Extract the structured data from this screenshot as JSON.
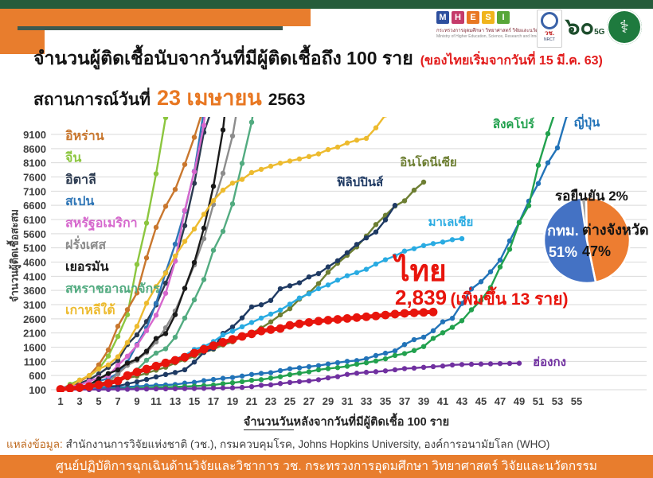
{
  "header": {
    "title": "จำนวนผู้ติดเชื้อนับจากวันที่มีผู้ติดเชื้อถึง 100 ราย",
    "title_note": "(ของไทยเริ่มจากวันที่ 15 มี.ค. 63)",
    "status_prefix": "สถานการณ์วันที่",
    "status_date": "23 เมษายน",
    "status_year": "2563",
    "logos": {
      "mhesi_letters": [
        "M",
        "H",
        "E",
        "S",
        "I"
      ],
      "mhesi_colors": [
        "#2d4f9e",
        "#c53a6a",
        "#e87722",
        "#f0b41c",
        "#58a638"
      ],
      "mhesi_thai": "กระทรวงการอุดมศึกษา วิทยาศาสตร์ วิจัยและนวัตกรรม",
      "mhesi_eng": "Ministry of Higher Education, Science, Research and Innovation",
      "nrct_thai": "วช.",
      "nrct_eng": "NRCT",
      "sixty_thai": "๖๐",
      "sixty_sub": "5G",
      "moph_symbol": "⚕"
    }
  },
  "chart_data": [
    {
      "type": "line",
      "title": "จำนวนผู้ติดเชื้อนับจากวันที่มีผู้ติดเชื้อถึง 100 ราย (ของไทยเริ่มจากวันที่ 15 มี.ค. 63)",
      "xlabel": "จำนวนวันหลังจากวันที่มีผู้ติดเชื้อ 100 ราย",
      "xlabel_parts": [
        "จำนวนวัน",
        "หลังจากวันที่มีผู้ติดเชื้อ 100 ราย"
      ],
      "ylabel": "จำนวนผู้ติดเชื้อสะสม",
      "x_ticks": [
        1,
        3,
        5,
        7,
        9,
        11,
        13,
        15,
        17,
        19,
        21,
        23,
        25,
        27,
        29,
        31,
        33,
        35,
        37,
        39,
        41,
        43,
        45,
        47,
        49,
        51,
        53,
        55
      ],
      "y_ticks": [
        100,
        600,
        1100,
        1600,
        2100,
        2600,
        3100,
        3600,
        4100,
        4600,
        5100,
        5600,
        6100,
        6600,
        7100,
        7600,
        8100,
        8600,
        9100
      ],
      "xlim": [
        1,
        56
      ],
      "ylim": [
        100,
        9600
      ],
      "grid": true,
      "legend_position": "labels-on-chart",
      "annotation": {
        "country": "ไทย",
        "value": "2,839",
        "note": "(เพิ่มขึ้น 13 ราย)"
      },
      "series": [
        {
          "id": "china",
          "name": "จีน",
          "color": "#8cc63f",
          "values": [
            100,
            291,
            440,
            571,
            830,
            1287,
            1975,
            2744,
            4515,
            5974,
            7711,
            9692
          ]
        },
        {
          "id": "iran",
          "name": "อิหร่าน",
          "color": "#c9772e",
          "values": [
            139,
            245,
            388,
            593,
            978,
            1501,
            2336,
            2922,
            3513,
            4747,
            5823,
            6566,
            7161,
            8042,
            9000,
            10075
          ]
        },
        {
          "id": "italy",
          "name": "อิตาลี",
          "color": "#2b3a50",
          "values": [
            155,
            229,
            322,
            453,
            655,
            888,
            1128,
            1694,
            2036,
            2502,
            3089,
            3858,
            4636,
            5883,
            7375,
            9172,
            10149
          ]
        },
        {
          "id": "spain",
          "name": "สเปน",
          "color": "#2e75b6",
          "values": [
            120,
            165,
            222,
            259,
            400,
            500,
            673,
            1073,
            1695,
            2277,
            3146,
            4231,
            5232,
            6391,
            7798,
            9942
          ]
        },
        {
          "id": "usa",
          "name": "สหรัฐอเมริกา",
          "color": "#d667cd",
          "values": [
            149,
            217,
            262,
            402,
            518,
            583,
            959,
            1281,
            1663,
            2179,
            2727,
            3499,
            4632,
            6421,
            7783,
            9415,
            13677
          ]
        },
        {
          "id": "france",
          "name": "ฝรั่งเศส",
          "color": "#8c8c8c",
          "values": [
            100,
            130,
            191,
            204,
            288,
            380,
            656,
            959,
            1136,
            1412,
            1784,
            2281,
            2876,
            3661,
            4499,
            5423,
            6633,
            7730,
            9043,
            10995
          ]
        },
        {
          "id": "germany",
          "name": "เยอรมัน",
          "color": "#1a1a1a",
          "values": [
            130,
            159,
            196,
            262,
            482,
            670,
            799,
            1040,
            1176,
            1457,
            1908,
            2078,
            2745,
            3675,
            4585,
            5795,
            7272,
            9257,
            12327
          ]
        },
        {
          "id": "uk",
          "name": "สหราชอาณาจักร",
          "color": "#52ab80",
          "values": [
            115,
            163,
            206,
            273,
            321,
            382,
            456,
            590,
            797,
            1140,
            1391,
            1543,
            1950,
            2626,
            3269,
            3983,
            5018,
            5683,
            6650,
            8077,
            9529,
            11658
          ]
        },
        {
          "id": "korea",
          "name": "เกาหลีใต้",
          "color": "#edbb2f",
          "values": [
            104,
            204,
            433,
            602,
            833,
            977,
            1261,
            1766,
            2337,
            3150,
            3736,
            4212,
            4812,
            5328,
            5766,
            6284,
            6767,
            7134,
            7382,
            7513,
            7755,
            7869,
            7979,
            8086,
            8162,
            8236,
            8320,
            8413,
            8565,
            8652,
            8799,
            8897,
            8961,
            9332,
            9786,
            10237,
            10683
          ]
        },
        {
          "id": "japan",
          "name": "ญี่ปุ่น",
          "color": "#2273b8",
          "values": [
            105,
            122,
            132,
            144,
            156,
            164,
            178,
            200,
            218,
            239,
            254,
            268,
            284,
            331,
            360,
            420,
            461,
            502,
            530,
            581,
            639,
            675,
            701,
            773,
            839,
            873,
            914,
            950,
            1007,
            1054,
            1101,
            1128,
            1193,
            1307,
            1387,
            1468,
            1693,
            1866,
            1953,
            2178,
            2495,
            2617,
            3139,
            3654,
            3906,
            4257,
            4667,
            5347,
            6005,
            6748,
            7370,
            8100,
            8626,
            9787
          ]
        },
        {
          "id": "singapore",
          "name": "สิงคโปร์",
          "color": "#22a14e",
          "values": [
            102,
            106,
            108,
            110,
            112,
            117,
            130,
            138,
            150,
            160,
            178,
            187,
            200,
            212,
            226,
            243,
            266,
            313,
            345,
            385,
            432,
            455,
            509,
            558,
            631,
            683,
            732,
            802,
            844,
            879,
            926,
            1000,
            1049,
            1114,
            1189,
            1309,
            1375,
            1481,
            1623,
            1910,
            2108,
            2299,
            2532,
            2918,
            3252,
            3699,
            4427,
            5050,
            5992,
            6588,
            8014,
            9125,
            10141
          ]
        },
        {
          "id": "indonesia",
          "name": "อินโดนีเซีย",
          "color": "#6e7f33",
          "values": [
            117,
            134,
            172,
            227,
            309,
            369,
            450,
            514,
            579,
            686,
            790,
            893,
            1046,
            1155,
            1285,
            1414,
            1528,
            1677,
            1790,
            1986,
            2092,
            2273,
            2491,
            2738,
            2956,
            3293,
            3512,
            3842,
            4241,
            4557,
            4839,
            5136,
            5516,
            5923,
            6248,
            6575,
            6760,
            7135,
            7418
          ]
        },
        {
          "id": "philippines",
          "name": "ฟิลิปปินส์",
          "color": "#1f3a63",
          "values": [
            111,
            140,
            142,
            187,
            202,
            217,
            230,
            307,
            380,
            462,
            552,
            636,
            707,
            803,
            1075,
            1418,
            1546,
            2084,
            2311,
            2633,
            3018,
            3094,
            3246,
            3660,
            3764,
            3870,
            4076,
            4195,
            4428,
            4648,
            4932,
            5223,
            5453,
            5660,
            6087,
            6599
          ]
        },
        {
          "id": "malaysia",
          "name": "มาเลเซีย",
          "color": "#29abe2",
          "values": [
            117,
            129,
            149,
            158,
            197,
            238,
            428,
            566,
            673,
            790,
            900,
            1030,
            1183,
            1306,
            1518,
            1624,
            1796,
            2031,
            2161,
            2320,
            2470,
            2626,
            2766,
            2908,
            3116,
            3333,
            3483,
            3662,
            3793,
            3963,
            4119,
            4228,
            4346,
            4530,
            4683,
            4817,
            4987,
            5072,
            5182,
            5251,
            5305,
            5389,
            5425
          ]
        },
        {
          "id": "hongkong",
          "name": "ฮ่องกง",
          "color": "#7030a0",
          "values": [
            100,
            101,
            104,
            105,
            107,
            108,
            114,
            115,
            120,
            126,
            129,
            131,
            134,
            140,
            142,
            148,
            155,
            162,
            167,
            181,
            208,
            256,
            273,
            317,
            356,
            386,
            410,
            453,
            519,
            561,
            641,
            682,
            714,
            734,
            765,
            802,
            845,
            862,
            890,
            914,
            935,
            973,
            989,
            998,
            1005,
            1012,
            1021,
            1026,
            1033
          ]
        },
        {
          "id": "thailand",
          "name": "ไทย",
          "color": "#e8140c",
          "line_width": 5,
          "marker_r": 5.4,
          "values": [
            114,
            147,
            177,
            212,
            272,
            322,
            411,
            599,
            721,
            827,
            934,
            1045,
            1136,
            1245,
            1388,
            1524,
            1651,
            1771,
            1875,
            1978,
            2067,
            2169,
            2220,
            2258,
            2369,
            2423,
            2473,
            2518,
            2551,
            2579,
            2613,
            2643,
            2672,
            2700,
            2733,
            2765,
            2792,
            2811,
            2826,
            2839
          ]
        }
      ]
    },
    {
      "type": "pie",
      "slices": [
        {
          "label": "กทม.",
          "pct": 51,
          "pct_text": "51%",
          "color": "#4472c4"
        },
        {
          "label": "ต่างจังหวัด",
          "pct": 47,
          "pct_text": "47%",
          "color": "#ed7d31"
        },
        {
          "label": "รอยืนยัน",
          "pct": 2,
          "pct_text": "2%",
          "color": "#a5a5a5"
        }
      ],
      "outside_label": "รอยืนยัน 2%"
    }
  ],
  "source": {
    "prefix": "แหล่งข้อมูล:",
    "text": " สำนักงานการวิจัยแห่งชาติ (วช.), กรมควบคุมโรค, Johns Hopkins University, องค์การอนามัยโลก (WHO)"
  },
  "footer": {
    "text": "ศูนย์ปฏิบัติการฉุกเฉินด้านวิจัยและวิชาการ   วช.   กระทรวงการอุดมศึกษา วิทยาศาสตร์ วิจัยและนวัตกรรม"
  }
}
